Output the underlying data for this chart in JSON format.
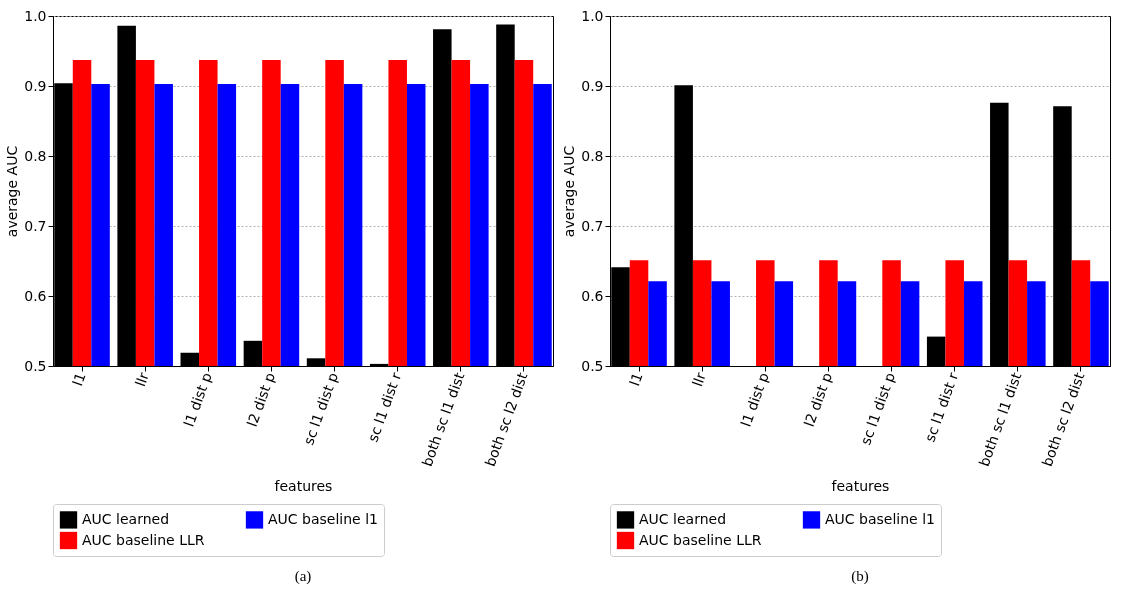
{
  "chart_data": [
    {
      "type": "bar",
      "title": "(a)",
      "xlabel": "features",
      "ylabel": "average AUC",
      "categories": [
        "l1",
        "llr",
        "l1 dist p",
        "l2 dist p",
        "sc l1 dist p",
        "sc l1 dist r",
        "both sc l1 dist",
        "both sc l2 dist"
      ],
      "ylim": [
        0.5,
        1.0
      ],
      "yticks": [
        0.5,
        0.6,
        0.7,
        0.8,
        0.9,
        {
          "value": 1,
          "label": "1.0"
        }
      ],
      "grid": "y",
      "legend": "bottom",
      "series": [
        {
          "name": "AUC learned",
          "color": "#000000",
          "values": [
            0.904,
            0.986,
            0.519,
            0.536,
            0.511,
            0.503,
            0.981,
            0.988
          ]
        },
        {
          "name": "AUC baseline LLR",
          "color": "#ff0000",
          "values": [
            0.937,
            0.937,
            0.937,
            0.937,
            0.937,
            0.937,
            0.937,
            0.937
          ]
        },
        {
          "name": "AUC baseline l1",
          "color": "#0000ff",
          "values": [
            0.903,
            0.903,
            0.903,
            0.903,
            0.903,
            0.903,
            0.903,
            0.903
          ]
        }
      ]
    },
    {
      "type": "bar",
      "title": "(b)",
      "xlabel": "features",
      "ylabel": "average AUC",
      "categories": [
        "l1",
        "llr",
        "l1 dist p",
        "l2 dist p",
        "sc l1 dist p",
        "sc l1 dist r",
        "both sc l1 dist",
        "both sc l2 dist"
      ],
      "ylim": [
        0.5,
        1.0
      ],
      "yticks": [
        0.5,
        0.6,
        0.7,
        0.8,
        0.9,
        {
          "value": 1,
          "label": "1.0"
        }
      ],
      "grid": "y",
      "legend": "bottom",
      "series": [
        {
          "name": "AUC learned",
          "color": "#000000",
          "values": [
            0.641,
            0.901,
            null,
            null,
            null,
            0.542,
            0.876,
            0.871
          ]
        },
        {
          "name": "AUC baseline LLR",
          "color": "#ff0000",
          "values": [
            0.651,
            0.651,
            0.651,
            0.651,
            0.651,
            0.651,
            0.651,
            0.651
          ]
        },
        {
          "name": "AUC baseline l1",
          "color": "#0000ff",
          "values": [
            0.621,
            0.621,
            0.621,
            0.621,
            0.621,
            0.621,
            0.621,
            0.621
          ]
        }
      ]
    }
  ]
}
